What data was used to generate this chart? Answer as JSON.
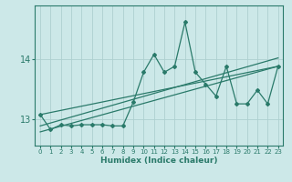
{
  "xlabel": "Humidex (Indice chaleur)",
  "bg_color": "#cce8e8",
  "line_color": "#2a7a6a",
  "grid_color": "#aed0d0",
  "x_values": [
    0,
    1,
    2,
    3,
    4,
    5,
    6,
    7,
    8,
    9,
    10,
    11,
    12,
    13,
    14,
    15,
    16,
    17,
    18,
    19,
    20,
    21,
    22,
    23
  ],
  "y_values": [
    13.07,
    12.82,
    12.9,
    12.88,
    12.9,
    12.9,
    12.9,
    12.88,
    12.88,
    13.28,
    13.78,
    14.08,
    13.78,
    13.88,
    14.62,
    13.78,
    13.58,
    13.38,
    13.88,
    13.25,
    13.25,
    13.48,
    13.25,
    13.88
  ],
  "ylim": [
    12.55,
    14.9
  ],
  "xlim": [
    -0.5,
    23.5
  ],
  "yticks": [
    13,
    14
  ],
  "xticks": [
    0,
    1,
    2,
    3,
    4,
    5,
    6,
    7,
    8,
    9,
    10,
    11,
    12,
    13,
    14,
    15,
    16,
    17,
    18,
    19,
    20,
    21,
    22,
    23
  ],
  "trend1_x": [
    0,
    23
  ],
  "trend1_y": [
    12.78,
    13.88
  ],
  "trend2_x": [
    0,
    23
  ],
  "trend2_y": [
    12.88,
    14.02
  ],
  "trend3_x": [
    0,
    23
  ],
  "trend3_y": [
    13.07,
    13.88
  ]
}
